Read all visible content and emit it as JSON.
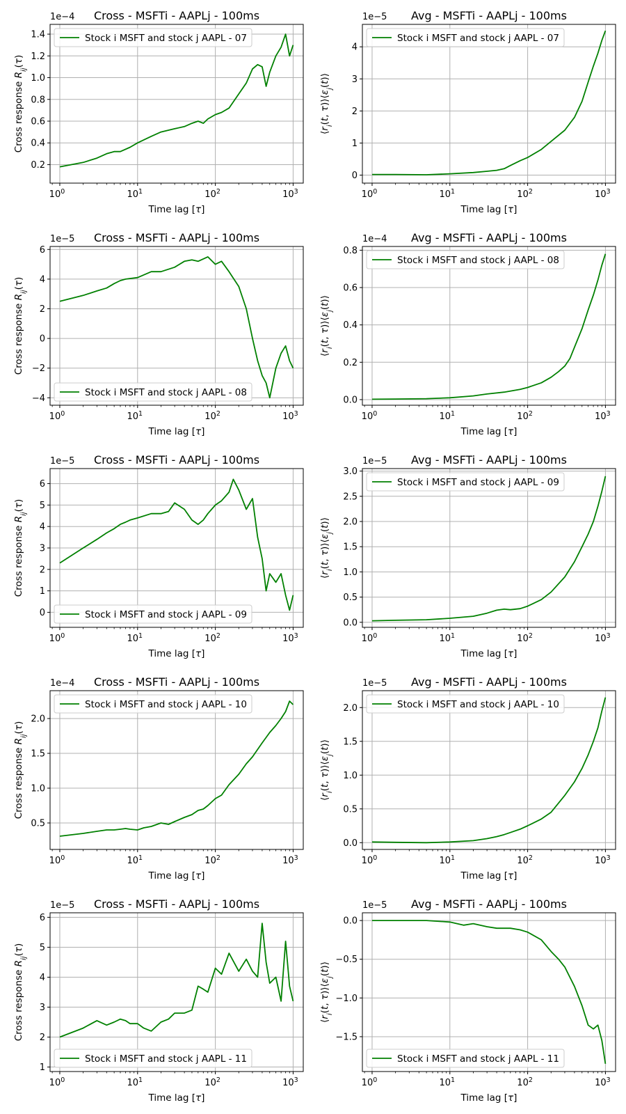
{
  "chart_data": [
    {
      "type": "line",
      "xscale": "log",
      "grid": true,
      "legend_loc": "upper left",
      "title": "Cross - MSFTi - AAPLj - 100ms",
      "xlabel": "Time lag [τ]",
      "ylabel": "Cross response R_ij(τ)",
      "y_offset": "1e−4",
      "xlim": [
        0.75,
        1350
      ],
      "ylim": [
        0.03,
        1.49
      ],
      "yticks": [
        0.2,
        0.4,
        0.6,
        0.8,
        1.0,
        1.2,
        1.4
      ],
      "ytick_labels": [
        "0.2",
        "0.4",
        "0.6",
        "0.8",
        "1.0",
        "1.2",
        "1.4"
      ],
      "series": [
        {
          "name": "Stock i MSFT and stock j AAPL - 07",
          "color": "#008000",
          "x": [
            1,
            2,
            3,
            4,
            5,
            6,
            8,
            10,
            15,
            20,
            30,
            40,
            50,
            60,
            70,
            80,
            100,
            120,
            150,
            200,
            250,
            300,
            350,
            400,
            450,
            500,
            600,
            700,
            800,
            900,
            1000
          ],
          "y": [
            0.18,
            0.22,
            0.26,
            0.3,
            0.32,
            0.32,
            0.36,
            0.4,
            0.46,
            0.5,
            0.53,
            0.55,
            0.58,
            0.6,
            0.58,
            0.62,
            0.66,
            0.68,
            0.72,
            0.85,
            0.95,
            1.08,
            1.12,
            1.1,
            0.92,
            1.05,
            1.2,
            1.28,
            1.4,
            1.2,
            1.3
          ]
        }
      ]
    },
    {
      "type": "line",
      "xscale": "log",
      "grid": true,
      "legend_loc": "upper left",
      "title": "Avg - MSFTi - AAPLj - 100ms",
      "xlabel": "Time lag [τ]",
      "ylabel": "⟨r_i(t,τ)⟩⟨ε_j(t)⟩",
      "y_offset": "1e−5",
      "xlim": [
        0.75,
        1350
      ],
      "ylim": [
        -0.25,
        4.7
      ],
      "yticks": [
        0,
        1,
        2,
        3,
        4
      ],
      "ytick_labels": [
        "0",
        "1",
        "2",
        "3",
        "4"
      ],
      "series": [
        {
          "name": "Stock i MSFT and stock j AAPL - 07",
          "color": "#008000",
          "x": [
            1,
            2,
            5,
            10,
            20,
            30,
            40,
            50,
            60,
            80,
            100,
            150,
            200,
            300,
            400,
            500,
            600,
            700,
            800,
            900,
            1000
          ],
          "y": [
            0.02,
            0.02,
            0.01,
            0.04,
            0.08,
            0.12,
            0.15,
            0.2,
            0.3,
            0.45,
            0.55,
            0.8,
            1.05,
            1.4,
            1.8,
            2.3,
            2.9,
            3.4,
            3.8,
            4.2,
            4.5
          ]
        }
      ]
    },
    {
      "type": "line",
      "xscale": "log",
      "grid": true,
      "legend_loc": "lower left",
      "title": "Cross - MSFTi - AAPLj - 100ms",
      "xlabel": "Time lag [τ]",
      "ylabel": "Cross response R_ij(τ)",
      "y_offset": "1e−5",
      "xlim": [
        0.75,
        1350
      ],
      "ylim": [
        -4.5,
        6.2
      ],
      "yticks": [
        -4,
        -2,
        0,
        2,
        4,
        6
      ],
      "ytick_labels": [
        "−4",
        "−2",
        "0",
        "2",
        "4",
        "6"
      ],
      "series": [
        {
          "name": "Stock i MSFT and stock j AAPL - 08",
          "color": "#008000",
          "x": [
            1,
            2,
            3,
            4,
            5,
            6,
            7,
            10,
            15,
            20,
            30,
            40,
            50,
            60,
            80,
            100,
            120,
            150,
            200,
            250,
            300,
            350,
            400,
            450,
            500,
            600,
            700,
            800,
            900,
            1000
          ],
          "y": [
            2.5,
            2.9,
            3.2,
            3.4,
            3.7,
            3.9,
            4.0,
            4.1,
            4.5,
            4.5,
            4.8,
            5.2,
            5.3,
            5.2,
            5.5,
            5.0,
            5.2,
            4.5,
            3.5,
            2.0,
            0.0,
            -1.5,
            -2.5,
            -3.0,
            -4.0,
            -2.0,
            -1.0,
            -0.5,
            -1.5,
            -2.0
          ]
        }
      ]
    },
    {
      "type": "line",
      "xscale": "log",
      "grid": true,
      "legend_loc": "upper left",
      "title": "Avg - MSFTi - AAPLj - 100ms",
      "xlabel": "Time lag [τ]",
      "ylabel": "⟨r_i(t,τ)⟩⟨ε_j(t)⟩",
      "y_offset": "1e−4",
      "xlim": [
        0.75,
        1350
      ],
      "ylim": [
        -0.03,
        0.82
      ],
      "yticks": [
        0.0,
        0.2,
        0.4,
        0.6,
        0.8
      ],
      "ytick_labels": [
        "0.0",
        "0.2",
        "0.4",
        "0.6",
        "0.8"
      ],
      "series": [
        {
          "name": "Stock i MSFT and stock j AAPL - 08",
          "color": "#008000",
          "x": [
            1,
            2,
            5,
            10,
            20,
            30,
            50,
            80,
            100,
            150,
            200,
            250,
            300,
            350,
            400,
            500,
            600,
            700,
            800,
            900,
            1000
          ],
          "y": [
            0.002,
            0.003,
            0.005,
            0.01,
            0.02,
            0.03,
            0.04,
            0.055,
            0.065,
            0.09,
            0.12,
            0.15,
            0.18,
            0.22,
            0.28,
            0.38,
            0.48,
            0.56,
            0.64,
            0.72,
            0.78
          ]
        }
      ]
    },
    {
      "type": "line",
      "xscale": "log",
      "grid": true,
      "legend_loc": "lower left",
      "title": "Cross - MSFTi - AAPLj - 100ms",
      "xlabel": "Time lag [τ]",
      "ylabel": "Cross response R_ij(τ)",
      "y_offset": "1e−5",
      "xlim": [
        0.75,
        1350
      ],
      "ylim": [
        -0.7,
        6.7
      ],
      "yticks": [
        0,
        1,
        2,
        3,
        4,
        5,
        6
      ],
      "ytick_labels": [
        "0",
        "1",
        "2",
        "3",
        "4",
        "5",
        "6"
      ],
      "series": [
        {
          "name": "Stock i MSFT and stock j AAPL - 09",
          "color": "#008000",
          "x": [
            1,
            2,
            3,
            4,
            5,
            6,
            7,
            8,
            10,
            15,
            20,
            25,
            30,
            40,
            50,
            60,
            70,
            80,
            100,
            120,
            150,
            170,
            200,
            250,
            300,
            350,
            400,
            450,
            500,
            600,
            700,
            800,
            900,
            1000
          ],
          "y": [
            2.3,
            3.0,
            3.4,
            3.7,
            3.9,
            4.1,
            4.2,
            4.3,
            4.4,
            4.6,
            4.6,
            4.7,
            5.1,
            4.8,
            4.3,
            4.1,
            4.3,
            4.6,
            5.0,
            5.2,
            5.6,
            6.2,
            5.7,
            4.8,
            5.3,
            3.5,
            2.5,
            1.0,
            1.8,
            1.4,
            1.8,
            0.8,
            0.1,
            0.8
          ]
        }
      ]
    },
    {
      "type": "line",
      "xscale": "log",
      "grid": true,
      "legend_loc": "upper left",
      "title": "Avg - MSFTi - AAPLj - 100ms",
      "xlabel": "Time lag [τ]",
      "ylabel": "⟨r_i(t,τ)⟩⟨ε_j(t)⟩",
      "y_offset": "1e−5",
      "xlim": [
        0.75,
        1350
      ],
      "ylim": [
        -0.1,
        3.05
      ],
      "yticks": [
        0.0,
        0.5,
        1.0,
        1.5,
        2.0,
        2.5,
        3.0
      ],
      "ytick_labels": [
        "0.0",
        "0.5",
        "1.0",
        "1.5",
        "2.0",
        "2.5",
        "3.0"
      ],
      "series": [
        {
          "name": "Stock i MSFT and stock j AAPL - 09",
          "color": "#008000",
          "x": [
            1,
            2,
            5,
            10,
            20,
            30,
            40,
            50,
            60,
            80,
            100,
            150,
            200,
            300,
            400,
            500,
            600,
            700,
            800,
            900,
            1000
          ],
          "y": [
            0.03,
            0.04,
            0.05,
            0.08,
            0.12,
            0.18,
            0.24,
            0.26,
            0.25,
            0.27,
            0.32,
            0.45,
            0.6,
            0.9,
            1.2,
            1.5,
            1.75,
            2.0,
            2.3,
            2.6,
            2.9
          ]
        }
      ]
    },
    {
      "type": "line",
      "xscale": "log",
      "grid": true,
      "legend_loc": "upper left",
      "title": "Cross - MSFTi - AAPLj - 100ms",
      "xlabel": "Time lag [τ]",
      "ylabel": "Cross response R_ij(τ)",
      "y_offset": "1e−4",
      "xlim": [
        0.75,
        1350
      ],
      "ylim": [
        0.12,
        2.4
      ],
      "yticks": [
        0.5,
        1.0,
        1.5,
        2.0
      ],
      "ytick_labels": [
        "0.5",
        "1.0",
        "1.5",
        "2.0"
      ],
      "series": [
        {
          "name": "Stock i MSFT and stock j AAPL - 10",
          "color": "#008000",
          "x": [
            1,
            2,
            3,
            4,
            5,
            6,
            7,
            8,
            10,
            12,
            15,
            20,
            25,
            30,
            40,
            50,
            60,
            70,
            80,
            100,
            120,
            150,
            200,
            250,
            300,
            400,
            500,
            600,
            700,
            800,
            900,
            1000
          ],
          "y": [
            0.31,
            0.35,
            0.38,
            0.4,
            0.4,
            0.41,
            0.42,
            0.41,
            0.4,
            0.43,
            0.45,
            0.5,
            0.48,
            0.52,
            0.58,
            0.62,
            0.68,
            0.7,
            0.75,
            0.85,
            0.9,
            1.05,
            1.2,
            1.35,
            1.45,
            1.65,
            1.8,
            1.9,
            2.0,
            2.1,
            2.25,
            2.2
          ]
        }
      ]
    },
    {
      "type": "line",
      "xscale": "log",
      "grid": true,
      "legend_loc": "upper left",
      "title": "Avg - MSFTi - AAPLj - 100ms",
      "xlabel": "Time lag [τ]",
      "ylabel": "⟨r_i(t,τ)⟩⟨ε_j(t)⟩",
      "y_offset": "1e−5",
      "xlim": [
        0.75,
        1350
      ],
      "ylim": [
        -0.1,
        2.25
      ],
      "yticks": [
        0.0,
        0.5,
        1.0,
        1.5,
        2.0
      ],
      "ytick_labels": [
        "0.0",
        "0.5",
        "1.0",
        "1.5",
        "2.0"
      ],
      "series": [
        {
          "name": "Stock i MSFT and stock j AAPL - 10",
          "color": "#008000",
          "x": [
            1,
            2,
            5,
            10,
            20,
            30,
            40,
            50,
            60,
            80,
            100,
            150,
            200,
            300,
            400,
            500,
            600,
            700,
            800,
            900,
            1000
          ],
          "y": [
            0.01,
            0.005,
            0.0,
            0.01,
            0.03,
            0.06,
            0.09,
            0.12,
            0.15,
            0.2,
            0.25,
            0.35,
            0.45,
            0.7,
            0.9,
            1.1,
            1.3,
            1.5,
            1.7,
            1.95,
            2.15
          ]
        }
      ]
    },
    {
      "type": "line",
      "xscale": "log",
      "grid": true,
      "legend_loc": "lower left",
      "title": "Cross - MSFTi - AAPLj - 100ms",
      "xlabel": "Time lag [τ]",
      "ylabel": "Cross response R_ij(τ)",
      "y_offset": "1e−5",
      "xlim": [
        0.75,
        1350
      ],
      "ylim": [
        0.85,
        6.15
      ],
      "yticks": [
        1,
        2,
        3,
        4,
        5,
        6
      ],
      "ytick_labels": [
        "1",
        "2",
        "3",
        "4",
        "5",
        "6"
      ],
      "series": [
        {
          "name": "Stock i MSFT and stock j AAPL - 11",
          "color": "#008000",
          "x": [
            1,
            2,
            3,
            4,
            5,
            6,
            7,
            8,
            10,
            12,
            15,
            20,
            25,
            30,
            40,
            50,
            60,
            70,
            80,
            100,
            120,
            150,
            200,
            250,
            300,
            350,
            400,
            450,
            500,
            600,
            700,
            800,
            900,
            1000
          ],
          "y": [
            2.0,
            2.3,
            2.55,
            2.4,
            2.5,
            2.6,
            2.55,
            2.45,
            2.45,
            2.3,
            2.2,
            2.5,
            2.6,
            2.8,
            2.8,
            2.9,
            3.7,
            3.6,
            3.5,
            4.3,
            4.1,
            4.8,
            4.2,
            4.6,
            4.2,
            4.0,
            5.8,
            4.5,
            3.8,
            4.0,
            3.2,
            5.2,
            3.7,
            3.2
          ]
        }
      ]
    },
    {
      "type": "line",
      "xscale": "log",
      "grid": true,
      "legend_loc": "lower left",
      "title": "Avg - MSFTi - AAPLj - 100ms",
      "xlabel": "Time lag [τ]",
      "ylabel": "⟨r_i(t,τ)⟩⟨ε_j(t)⟩",
      "y_offset": "1e−5",
      "xlim": [
        0.75,
        1350
      ],
      "ylim": [
        -1.95,
        0.1
      ],
      "yticks": [
        0.0,
        -0.5,
        -1.0,
        -1.5
      ],
      "ytick_labels": [
        "0.0",
        "−0.5",
        "−1.0",
        "−1.5"
      ],
      "series": [
        {
          "name": "Stock i MSFT and stock j AAPL - 11",
          "color": "#008000",
          "x": [
            1,
            2,
            5,
            10,
            15,
            20,
            30,
            40,
            50,
            60,
            80,
            100,
            150,
            200,
            250,
            300,
            400,
            500,
            600,
            700,
            800,
            900,
            1000
          ],
          "y": [
            0.0,
            0.0,
            0.0,
            -0.02,
            -0.06,
            -0.04,
            -0.08,
            -0.1,
            -0.1,
            -0.1,
            -0.12,
            -0.15,
            -0.25,
            -0.4,
            -0.5,
            -0.6,
            -0.85,
            -1.1,
            -1.35,
            -1.4,
            -1.35,
            -1.55,
            -1.85
          ]
        }
      ]
    }
  ]
}
